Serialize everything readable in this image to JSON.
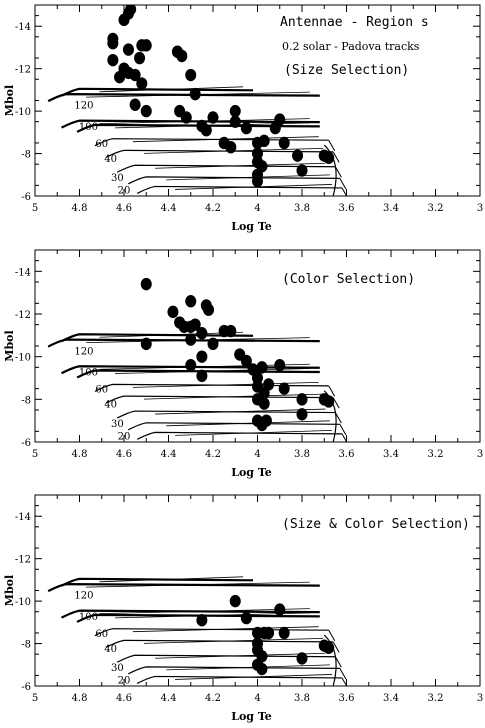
{
  "chart_data": [
    {
      "type": "scatter",
      "title": "Antennae - Region s",
      "annotations": [
        "0.2 solar - Padova tracks",
        "(Size Selection)"
      ],
      "xlabel": "Log Te",
      "ylabel": "Mbol",
      "xlim": [
        5,
        3
      ],
      "ylim": [
        -6,
        -15
      ],
      "x_ticks": [
        "5",
        "4.8",
        "4.6",
        "4.4",
        "4.2",
        "4",
        "3.8",
        "3.6",
        "3.4",
        "3.2",
        "3"
      ],
      "y_ticks": [
        "-14",
        "-12",
        "-10",
        "-8",
        "-6"
      ],
      "track_labels": [
        {
          "text": "120",
          "x": 4.78,
          "y": -10.3
        },
        {
          "text": "100",
          "x": 4.76,
          "y": -9.3
        },
        {
          "text": "60",
          "x": 4.7,
          "y": -8.5
        },
        {
          "text": "40",
          "x": 4.66,
          "y": -7.8
        },
        {
          "text": "30",
          "x": 4.63,
          "y": -6.9
        },
        {
          "text": "20",
          "x": 4.6,
          "y": -6.3
        }
      ],
      "points": [
        {
          "x": 4.57,
          "y": -14.8
        },
        {
          "x": 4.58,
          "y": -14.6
        },
        {
          "x": 4.6,
          "y": -14.3
        },
        {
          "x": 4.65,
          "y": -13.4
        },
        {
          "x": 4.65,
          "y": -13.2
        },
        {
          "x": 4.58,
          "y": -12.9
        },
        {
          "x": 4.52,
          "y": -13.1
        },
        {
          "x": 4.5,
          "y": -13.1
        },
        {
          "x": 4.53,
          "y": -12.5
        },
        {
          "x": 4.65,
          "y": -12.4
        },
        {
          "x": 4.6,
          "y": -12.0
        },
        {
          "x": 4.58,
          "y": -11.8
        },
        {
          "x": 4.62,
          "y": -11.6
        },
        {
          "x": 4.55,
          "y": -11.7
        },
        {
          "x": 4.52,
          "y": -11.3
        },
        {
          "x": 4.36,
          "y": -12.8
        },
        {
          "x": 4.34,
          "y": -12.6
        },
        {
          "x": 4.3,
          "y": -11.7
        },
        {
          "x": 4.28,
          "y": -10.8
        },
        {
          "x": 4.55,
          "y": -10.3
        },
        {
          "x": 4.5,
          "y": -10.0
        },
        {
          "x": 4.35,
          "y": -10.0
        },
        {
          "x": 4.32,
          "y": -9.7
        },
        {
          "x": 4.25,
          "y": -9.3
        },
        {
          "x": 4.23,
          "y": -9.1
        },
        {
          "x": 4.2,
          "y": -9.7
        },
        {
          "x": 4.1,
          "y": -10.0
        },
        {
          "x": 4.1,
          "y": -9.5
        },
        {
          "x": 4.05,
          "y": -9.2
        },
        {
          "x": 4.15,
          "y": -8.5
        },
        {
          "x": 4.12,
          "y": -8.3
        },
        {
          "x": 4.0,
          "y": -8.5
        },
        {
          "x": 3.97,
          "y": -8.6
        },
        {
          "x": 4.0,
          "y": -8.0
        },
        {
          "x": 4.0,
          "y": -7.6
        },
        {
          "x": 3.98,
          "y": -7.4
        },
        {
          "x": 4.0,
          "y": -7.0
        },
        {
          "x": 4.0,
          "y": -6.7
        },
        {
          "x": 3.92,
          "y": -9.2
        },
        {
          "x": 3.9,
          "y": -9.6
        },
        {
          "x": 3.88,
          "y": -8.5
        },
        {
          "x": 3.82,
          "y": -7.9
        },
        {
          "x": 3.8,
          "y": -7.2
        },
        {
          "x": 3.7,
          "y": -7.9
        },
        {
          "x": 3.68,
          "y": -7.8
        }
      ]
    },
    {
      "type": "scatter",
      "annotations": [
        "(Color Selection)"
      ],
      "xlabel": "Log Te",
      "ylabel": "Mbol",
      "xlim": [
        5,
        3
      ],
      "ylim": [
        -6,
        -15
      ],
      "x_ticks": [
        "5",
        "4.8",
        "4.6",
        "4.4",
        "4.2",
        "4",
        "3.8",
        "3.6",
        "3.4",
        "3.2",
        "3"
      ],
      "y_ticks": [
        "-14",
        "-12",
        "-10",
        "-8",
        "-6"
      ],
      "track_labels": [
        {
          "text": "120",
          "x": 4.78,
          "y": -10.3
        },
        {
          "text": "100",
          "x": 4.76,
          "y": -9.3
        },
        {
          "text": "60",
          "x": 4.7,
          "y": -8.5
        },
        {
          "text": "40",
          "x": 4.66,
          "y": -7.8
        },
        {
          "text": "30",
          "x": 4.63,
          "y": -6.9
        },
        {
          "text": "20",
          "x": 4.6,
          "y": -6.3
        }
      ],
      "points": [
        {
          "x": 4.5,
          "y": -13.4
        },
        {
          "x": 4.38,
          "y": -12.1
        },
        {
          "x": 4.3,
          "y": -12.6
        },
        {
          "x": 4.23,
          "y": -12.4
        },
        {
          "x": 4.22,
          "y": -12.2
        },
        {
          "x": 4.35,
          "y": -11.6
        },
        {
          "x": 4.33,
          "y": -11.4
        },
        {
          "x": 4.3,
          "y": -11.4
        },
        {
          "x": 4.28,
          "y": -11.5
        },
        {
          "x": 4.5,
          "y": -10.6
        },
        {
          "x": 4.3,
          "y": -10.8
        },
        {
          "x": 4.25,
          "y": -11.1
        },
        {
          "x": 4.2,
          "y": -10.6
        },
        {
          "x": 4.15,
          "y": -11.2
        },
        {
          "x": 4.12,
          "y": -11.2
        },
        {
          "x": 4.25,
          "y": -10.0
        },
        {
          "x": 4.3,
          "y": -9.6
        },
        {
          "x": 4.25,
          "y": -9.1
        },
        {
          "x": 4.08,
          "y": -10.1
        },
        {
          "x": 4.05,
          "y": -9.8
        },
        {
          "x": 4.02,
          "y": -9.4
        },
        {
          "x": 4.0,
          "y": -9.0
        },
        {
          "x": 3.98,
          "y": -9.5
        },
        {
          "x": 4.0,
          "y": -8.6
        },
        {
          "x": 3.97,
          "y": -8.3
        },
        {
          "x": 4.0,
          "y": -8.0
        },
        {
          "x": 3.97,
          "y": -7.8
        },
        {
          "x": 3.95,
          "y": -8.7
        },
        {
          "x": 4.0,
          "y": -7.0
        },
        {
          "x": 3.98,
          "y": -6.8
        },
        {
          "x": 3.96,
          "y": -7.0
        },
        {
          "x": 3.9,
          "y": -9.6
        },
        {
          "x": 3.88,
          "y": -8.5
        },
        {
          "x": 3.8,
          "y": -8.0
        },
        {
          "x": 3.8,
          "y": -7.3
        },
        {
          "x": 3.7,
          "y": -8.0
        },
        {
          "x": 3.68,
          "y": -7.9
        }
      ]
    },
    {
      "type": "scatter",
      "annotations": [
        "(Size & Color Selection)"
      ],
      "xlabel": "Log Te",
      "ylabel": "Mbol",
      "xlim": [
        5,
        3
      ],
      "ylim": [
        -6,
        -15
      ],
      "x_ticks": [
        "5",
        "4.8",
        "4.6",
        "4.4",
        "4.2",
        "4",
        "3.8",
        "3.6",
        "3.4",
        "3.2",
        "3"
      ],
      "y_ticks": [
        "-14",
        "-12",
        "-10",
        "-8",
        "-6"
      ],
      "track_labels": [
        {
          "text": "120",
          "x": 4.78,
          "y": -10.3
        },
        {
          "text": "100",
          "x": 4.76,
          "y": -9.3
        },
        {
          "text": "60",
          "x": 4.7,
          "y": -8.5
        },
        {
          "text": "40",
          "x": 4.66,
          "y": -7.8
        },
        {
          "text": "30",
          "x": 4.63,
          "y": -6.9
        },
        {
          "text": "20",
          "x": 4.6,
          "y": -6.3
        }
      ],
      "points": [
        {
          "x": 4.1,
          "y": -10.0
        },
        {
          "x": 4.25,
          "y": -9.1
        },
        {
          "x": 4.05,
          "y": -9.2
        },
        {
          "x": 3.9,
          "y": -9.6
        },
        {
          "x": 4.0,
          "y": -8.5
        },
        {
          "x": 3.97,
          "y": -8.5
        },
        {
          "x": 3.95,
          "y": -8.5
        },
        {
          "x": 4.0,
          "y": -8.0
        },
        {
          "x": 4.0,
          "y": -7.7
        },
        {
          "x": 3.98,
          "y": -7.4
        },
        {
          "x": 4.0,
          "y": -7.0
        },
        {
          "x": 3.98,
          "y": -6.8
        },
        {
          "x": 3.88,
          "y": -8.5
        },
        {
          "x": 3.8,
          "y": -7.3
        },
        {
          "x": 3.7,
          "y": -7.9
        },
        {
          "x": 3.68,
          "y": -7.8
        }
      ]
    }
  ]
}
